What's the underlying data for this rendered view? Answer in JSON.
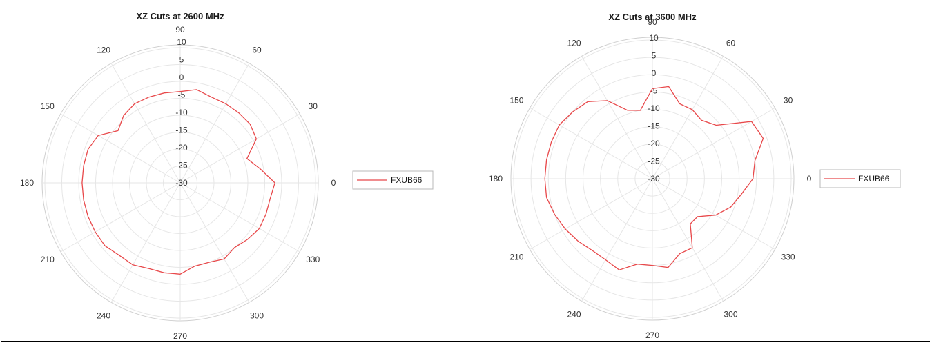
{
  "colors": {
    "series": "#e8484a",
    "grid": "#e6e6e6",
    "outer": "#cfcfcf"
  },
  "chart_data": [
    {
      "type": "polar",
      "title": "XZ Cuts at 2600 MHz",
      "rlim": [
        -30,
        10
      ],
      "r_ticks": [
        "10",
        "5",
        "0",
        "-5",
        "-10",
        "-15",
        "-20",
        "-25",
        "-30"
      ],
      "theta_ticks": [
        "0",
        "30",
        "60",
        "90",
        "120",
        "150",
        "180",
        "210",
        "240",
        "270",
        "300",
        "330"
      ],
      "grid": true,
      "legend_position": "right",
      "series": [
        {
          "name": "FXUB66",
          "theta": [
            0,
            10,
            20,
            30,
            40,
            50,
            60,
            70,
            80,
            90,
            100,
            110,
            120,
            130,
            140,
            150,
            160,
            170,
            180,
            190,
            200,
            210,
            220,
            230,
            240,
            250,
            260,
            270,
            280,
            290,
            300,
            310,
            320,
            330,
            340,
            350,
            360
          ],
          "r": [
            -2,
            -6,
            -9,
            -4,
            -3,
            -3,
            -3,
            -3,
            -2,
            -3,
            -3,
            -3,
            -3,
            -4,
            -6,
            -2,
            -1,
            -1,
            -1,
            -1,
            -1,
            -1,
            -1,
            -2,
            -2,
            -3,
            -3,
            -3,
            -5,
            -5,
            -4,
            -5,
            -4,
            -3,
            -3,
            -3,
            -2
          ]
        }
      ]
    },
    {
      "type": "polar",
      "title": "XZ Cuts at 3600 MHz",
      "rlim": [
        -30,
        10
      ],
      "r_ticks": [
        "10",
        "5",
        "0",
        "-5",
        "-10",
        "-15",
        "-20",
        "-25",
        "-30"
      ],
      "theta_ticks": [
        "0",
        "30",
        "60",
        "90",
        "120",
        "150",
        "180",
        "210",
        "240",
        "270",
        "300",
        "330"
      ],
      "grid": true,
      "legend_position": "right",
      "series": [
        {
          "name": "FXUB66",
          "theta": [
            0,
            10,
            20,
            30,
            40,
            50,
            60,
            70,
            80,
            90,
            100,
            110,
            120,
            130,
            140,
            150,
            160,
            170,
            180,
            190,
            200,
            210,
            220,
            230,
            240,
            250,
            260,
            270,
            280,
            290,
            300,
            310,
            320,
            330,
            340,
            350,
            360
          ],
          "r": [
            -1,
            0,
            4,
            3,
            -6,
            -8,
            -7,
            -7,
            -3,
            -4,
            -10,
            -9,
            -4,
            -1,
            0,
            1,
            1,
            1,
            1,
            1,
            0,
            -1,
            -2,
            -3,
            -3,
            -2,
            -5,
            -5,
            -4,
            -7,
            -7,
            -13,
            -13,
            -9,
            -6,
            -4,
            -1
          ]
        }
      ]
    }
  ]
}
